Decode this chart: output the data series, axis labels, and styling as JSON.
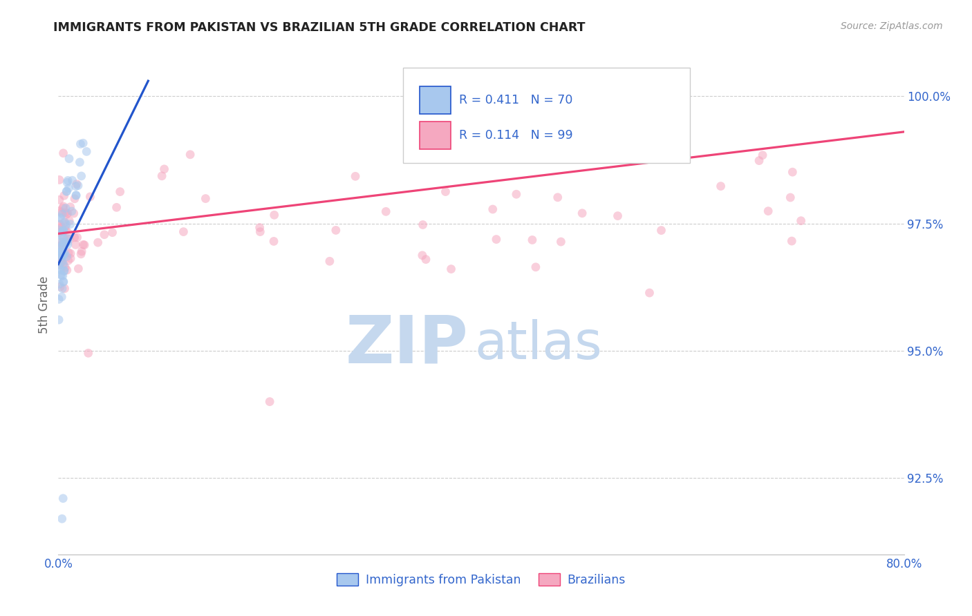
{
  "title": "IMMIGRANTS FROM PAKISTAN VS BRAZILIAN 5TH GRADE CORRELATION CHART",
  "source": "Source: ZipAtlas.com",
  "ylabel": "5th Grade",
  "legend_r1": "R = 0.411",
  "legend_n1": "N = 70",
  "legend_r2": "R = 0.114",
  "legend_n2": "N = 99",
  "legend_label1": "Immigrants from Pakistan",
  "legend_label2": "Brazilians",
  "color_blue": "#A8C8EE",
  "color_pink": "#F5A8C0",
  "color_blue_line": "#2255CC",
  "color_pink_line": "#EE4477",
  "color_title": "#222222",
  "color_axis_text": "#3366CC",
  "color_source": "#999999",
  "marker_size": 85,
  "marker_alpha": 0.55,
  "xmin": 0.0,
  "xmax": 80.0,
  "ymin": 91.0,
  "ymax": 100.8,
  "yticks": [
    92.5,
    95.0,
    97.5,
    100.0
  ],
  "ytick_labels": [
    "92.5%",
    "95.0%",
    "97.5%",
    "100.0%"
  ],
  "xtick_left": "0.0%",
  "xtick_right": "80.0%",
  "watermark_zip_color": "#C5D8EE",
  "watermark_atlas_color": "#C5D8EE",
  "watermark_zip_size": 70,
  "watermark_atlas_size": 55,
  "blue_trend_x0": 0.0,
  "blue_trend_x1": 8.5,
  "blue_trend_y0": 96.7,
  "blue_trend_y1": 100.3,
  "pink_trend_x0": 0.0,
  "pink_trend_x1": 80.0,
  "pink_trend_y0": 97.3,
  "pink_trend_y1": 99.3
}
